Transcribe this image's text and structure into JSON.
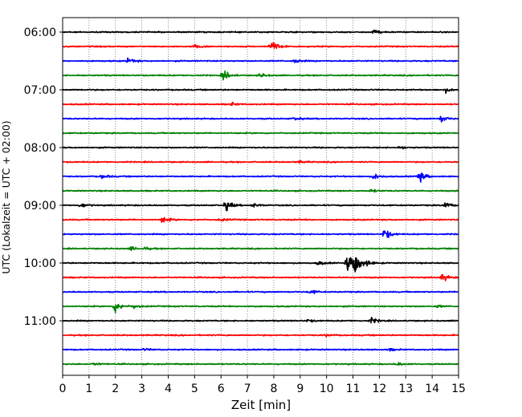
{
  "chart_data": {
    "type": "line",
    "title": "",
    "xlabel": "Zeit  [min]",
    "ylabel": "UTC (Lokalzeit = UTC + 02:00)",
    "xlim": [
      0,
      15
    ],
    "x_ticks": [
      0,
      1,
      2,
      3,
      4,
      5,
      6,
      7,
      8,
      9,
      10,
      11,
      12,
      13,
      14,
      15
    ],
    "y_tick_labels": [
      "06:00",
      "07:00",
      "08:00",
      "09:00",
      "10:00",
      "11:00"
    ],
    "grid": "vertical dotted",
    "trace_interval_minutes": 15,
    "colors_cycle": [
      "#000000",
      "#ff0000",
      "#0000ff",
      "#008000"
    ],
    "series": [
      {
        "start": "06:00",
        "color": "#000000",
        "events": [
          {
            "t": 11.8,
            "amp": 0.3
          }
        ]
      },
      {
        "start": "06:15",
        "color": "#ff0000",
        "events": [
          {
            "t": 5.0,
            "amp": 0.35
          },
          {
            "t": 7.9,
            "amp": 1.0
          }
        ]
      },
      {
        "start": "06:30",
        "color": "#0000ff",
        "events": [
          {
            "t": 2.5,
            "amp": 0.4
          },
          {
            "t": 8.8,
            "amp": 0.3
          }
        ]
      },
      {
        "start": "06:45",
        "color": "#008000",
        "events": [
          {
            "t": 6.1,
            "amp": 0.75
          },
          {
            "t": 7.5,
            "amp": 0.3
          }
        ]
      },
      {
        "start": "07:00",
        "color": "#000000",
        "events": [
          {
            "t": 14.5,
            "amp": 0.35
          }
        ]
      },
      {
        "start": "07:15",
        "color": "#ff0000",
        "events": [
          {
            "t": 6.4,
            "amp": 0.2
          }
        ]
      },
      {
        "start": "07:30",
        "color": "#0000ff",
        "events": [
          {
            "t": 8.8,
            "amp": 0.2
          },
          {
            "t": 14.35,
            "amp": 0.5
          }
        ]
      },
      {
        "start": "07:45",
        "color": "#008000",
        "events": []
      },
      {
        "start": "08:00",
        "color": "#000000",
        "events": [
          {
            "t": 12.8,
            "amp": 0.2
          }
        ]
      },
      {
        "start": "08:15",
        "color": "#ff0000",
        "events": [
          {
            "t": 9.0,
            "amp": 0.15
          }
        ]
      },
      {
        "start": "08:30",
        "color": "#0000ff",
        "events": [
          {
            "t": 1.5,
            "amp": 0.3
          },
          {
            "t": 11.8,
            "amp": 0.45
          },
          {
            "t": 13.5,
            "amp": 0.9
          }
        ]
      },
      {
        "start": "08:45",
        "color": "#008000",
        "events": [
          {
            "t": 11.7,
            "amp": 0.2
          }
        ]
      },
      {
        "start": "09:00",
        "color": "#000000",
        "events": [
          {
            "t": 0.7,
            "amp": 0.35
          },
          {
            "t": 6.2,
            "amp": 0.8
          },
          {
            "t": 7.2,
            "amp": 0.3
          },
          {
            "t": 14.5,
            "amp": 0.45
          }
        ]
      },
      {
        "start": "09:15",
        "color": "#ff0000",
        "events": [
          {
            "t": 3.8,
            "amp": 0.55
          },
          {
            "t": 6.0,
            "amp": 0.2
          }
        ]
      },
      {
        "start": "09:30",
        "color": "#0000ff",
        "events": [
          {
            "t": 12.2,
            "amp": 0.9
          }
        ]
      },
      {
        "start": "09:45",
        "color": "#008000",
        "events": [
          {
            "t": 2.6,
            "amp": 0.25
          },
          {
            "t": 3.1,
            "amp": 0.2
          }
        ]
      },
      {
        "start": "10:00",
        "color": "#000000",
        "events": [
          {
            "t": 9.7,
            "amp": 0.3
          },
          {
            "t": 10.8,
            "amp": 1.3
          },
          {
            "t": 11.1,
            "amp": 1.8
          },
          {
            "t": 11.6,
            "amp": 0.3
          }
        ]
      },
      {
        "start": "10:15",
        "color": "#ff0000",
        "events": [
          {
            "t": 14.4,
            "amp": 0.55
          }
        ]
      },
      {
        "start": "10:30",
        "color": "#0000ff",
        "events": [
          {
            "t": 9.4,
            "amp": 0.3
          }
        ]
      },
      {
        "start": "10:45",
        "color": "#008000",
        "events": [
          {
            "t": 2.0,
            "amp": 0.9
          },
          {
            "t": 2.7,
            "amp": 0.3
          },
          {
            "t": 14.2,
            "amp": 0.15
          }
        ]
      },
      {
        "start": "11:00",
        "color": "#000000",
        "events": [
          {
            "t": 9.3,
            "amp": 0.2
          },
          {
            "t": 11.7,
            "amp": 0.45
          }
        ]
      },
      {
        "start": "11:15",
        "color": "#ff0000",
        "events": [
          {
            "t": 10.0,
            "amp": 0.15
          }
        ]
      },
      {
        "start": "11:30",
        "color": "#0000ff",
        "events": [
          {
            "t": 3.1,
            "amp": 0.15
          },
          {
            "t": 12.4,
            "amp": 0.15
          }
        ]
      },
      {
        "start": "11:45",
        "color": "#008000",
        "events": [
          {
            "t": 1.2,
            "amp": 0.2
          },
          {
            "t": 12.7,
            "amp": 0.25
          }
        ]
      }
    ]
  }
}
